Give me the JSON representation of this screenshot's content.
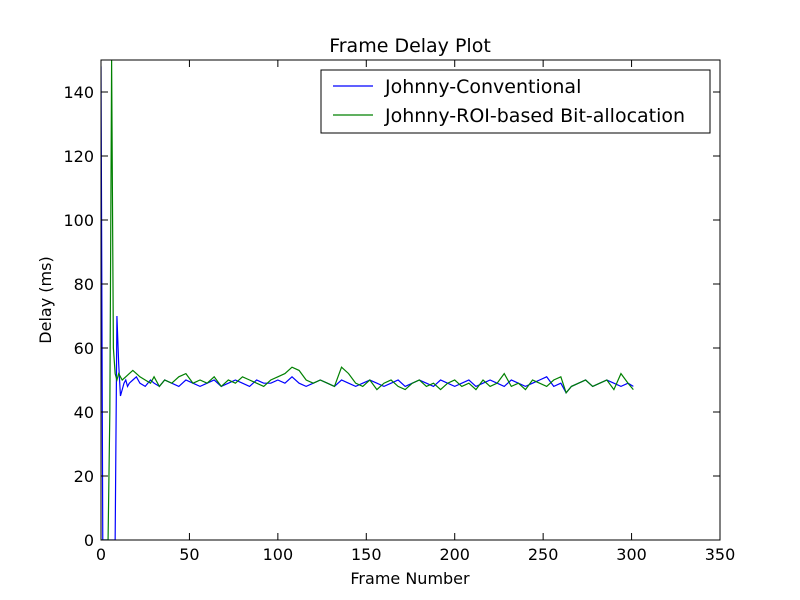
{
  "chart_data": {
    "type": "line",
    "title": "Frame Delay Plot",
    "xlabel": "Frame Number",
    "ylabel": "Delay (ms)",
    "xlim": [
      0,
      350
    ],
    "ylim": [
      0,
      150
    ],
    "xticks": [
      0,
      50,
      100,
      150,
      200,
      250,
      300,
      350
    ],
    "yticks": [
      0,
      20,
      40,
      60,
      80,
      100,
      120,
      140
    ],
    "grid": false,
    "legend_position": "top-right",
    "series": [
      {
        "name": "Johnny-Conventional",
        "color": "#0000ff",
        "x": [
          0,
          1,
          2,
          3,
          4,
          5,
          6,
          7,
          8,
          9,
          10,
          11,
          12,
          13,
          14,
          15,
          16,
          18,
          20,
          22,
          25,
          28,
          30,
          33,
          36,
          40,
          44,
          48,
          52,
          56,
          60,
          64,
          68,
          72,
          76,
          80,
          84,
          88,
          92,
          96,
          100,
          104,
          108,
          112,
          116,
          120,
          124,
          128,
          132,
          136,
          140,
          144,
          148,
          152,
          156,
          160,
          164,
          168,
          172,
          176,
          180,
          184,
          188,
          192,
          196,
          200,
          204,
          208,
          212,
          216,
          220,
          224,
          228,
          232,
          236,
          240,
          244,
          248,
          252,
          256,
          260,
          263,
          266,
          270,
          274,
          278,
          282,
          286,
          290,
          294,
          298,
          301
        ],
        "y": [
          148,
          0,
          0,
          0,
          0,
          0,
          0,
          0,
          0,
          70,
          55,
          45,
          47,
          49,
          50,
          48,
          49,
          50,
          51,
          49,
          48,
          50,
          49,
          48,
          50,
          49,
          48,
          50,
          49,
          48,
          49,
          50,
          48,
          49,
          50,
          49,
          48,
          50,
          49,
          49,
          50,
          49,
          51,
          49,
          48,
          49,
          50,
          49,
          48,
          50,
          49,
          48,
          49,
          50,
          49,
          48,
          49,
          50,
          48,
          49,
          50,
          49,
          48,
          50,
          49,
          48,
          49,
          50,
          48,
          49,
          50,
          49,
          48,
          50,
          49,
          48,
          49,
          50,
          51,
          48,
          49,
          46,
          48,
          49,
          50,
          48,
          49,
          50,
          49,
          48,
          49,
          48
        ]
      },
      {
        "name": "Johnny-ROI-based Bit-allocation",
        "color": "#008000",
        "x": [
          0,
          1,
          2,
          3,
          4,
          5,
          6,
          7,
          8,
          9,
          10,
          11,
          12,
          14,
          16,
          18,
          20,
          22,
          25,
          28,
          30,
          33,
          36,
          40,
          44,
          48,
          52,
          56,
          60,
          64,
          68,
          72,
          76,
          80,
          84,
          88,
          92,
          96,
          100,
          104,
          108,
          112,
          116,
          120,
          124,
          128,
          132,
          136,
          140,
          144,
          148,
          152,
          156,
          160,
          164,
          168,
          172,
          176,
          180,
          184,
          188,
          192,
          196,
          200,
          204,
          208,
          212,
          216,
          220,
          224,
          228,
          232,
          236,
          240,
          244,
          248,
          252,
          256,
          260,
          263,
          266,
          270,
          274,
          278,
          282,
          286,
          290,
          294,
          298,
          301
        ],
        "y": [
          0,
          0,
          0,
          0,
          0,
          40,
          150,
          60,
          52,
          50,
          52,
          51,
          50,
          51,
          52,
          53,
          52,
          51,
          50,
          49,
          51,
          48,
          50,
          49,
          51,
          52,
          49,
          50,
          49,
          51,
          48,
          50,
          49,
          51,
          50,
          49,
          48,
          50,
          51,
          52,
          54,
          53,
          50,
          49,
          50,
          49,
          48,
          54,
          52,
          49,
          48,
          50,
          47,
          49,
          50,
          48,
          47,
          49,
          50,
          48,
          49,
          47,
          49,
          50,
          48,
          49,
          47,
          50,
          48,
          49,
          52,
          48,
          49,
          47,
          50,
          49,
          48,
          50,
          51,
          46,
          48,
          49,
          50,
          48,
          49,
          50,
          47,
          52,
          49,
          47
        ]
      }
    ]
  }
}
